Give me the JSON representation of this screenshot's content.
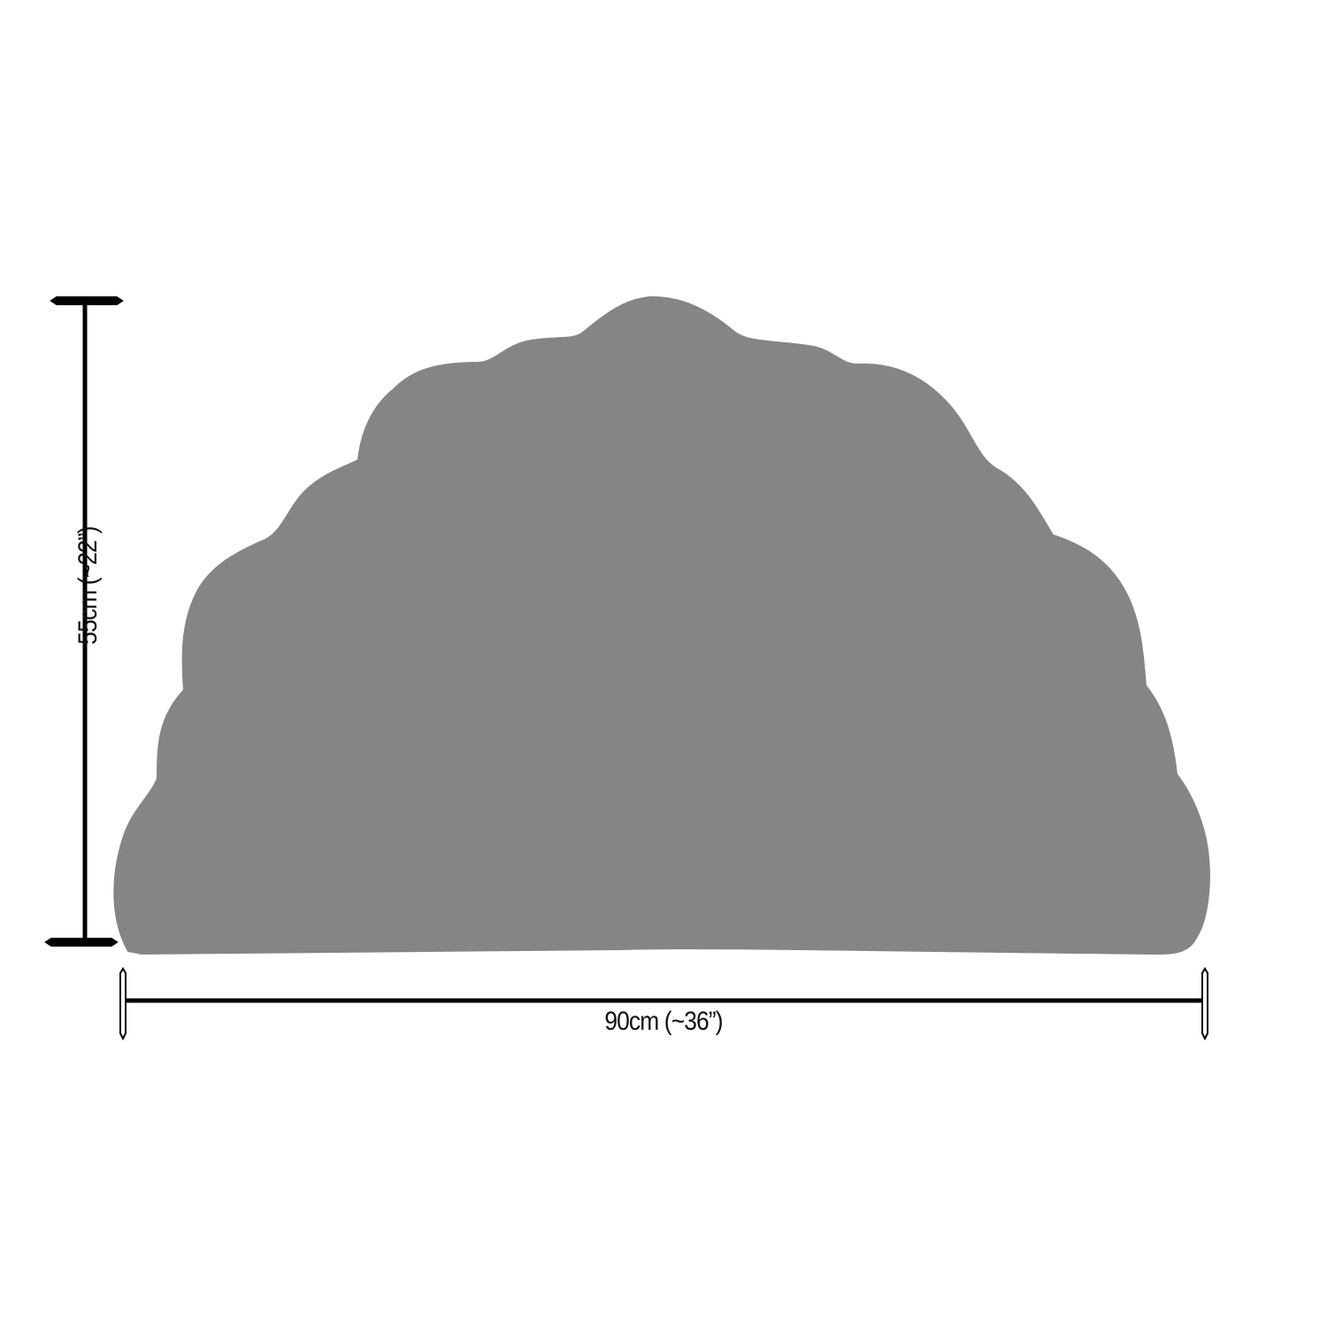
{
  "diagram": {
    "width_label": "90cm (~36”)",
    "height_label": "55cm (~22”)",
    "shape_color": "#858585",
    "line_color": "#000000"
  }
}
